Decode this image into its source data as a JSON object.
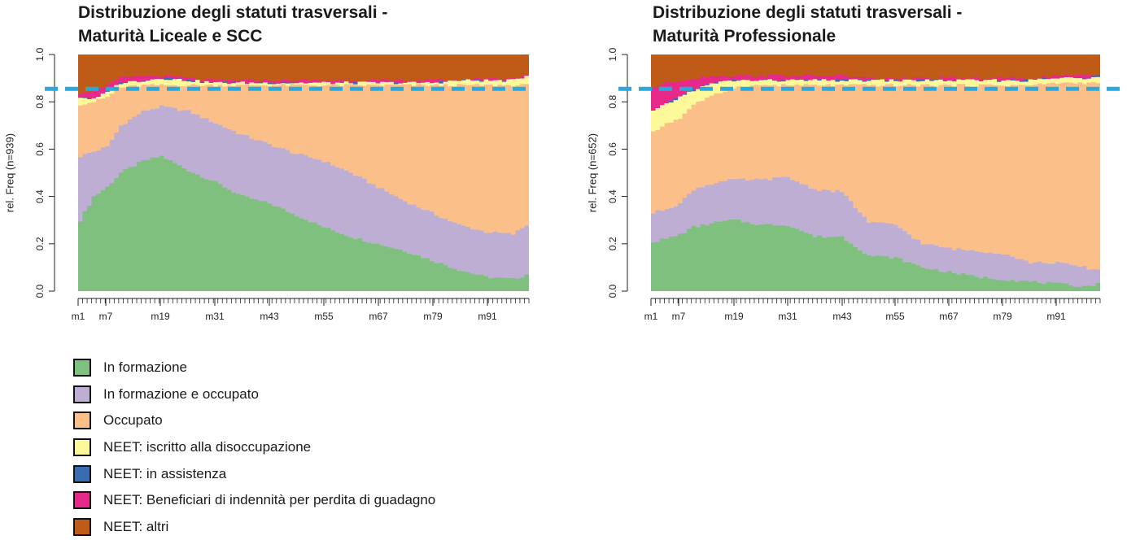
{
  "legend": [
    {
      "label": "In formazione",
      "color": "#7fc07f"
    },
    {
      "label": "In formazione e occupato",
      "color": "#beaed4"
    },
    {
      "label": "Occupato",
      "color": "#fbc08a"
    },
    {
      "label": "NEET: iscritto alla disoccupazione",
      "color": "#fdf89a"
    },
    {
      "label": "NEET: in assistenza",
      "color": "#386cb0"
    },
    {
      "label": "NEET: Beneficiari di indennità per perdita di guadagno",
      "color": "#e7298a"
    },
    {
      "label": "NEET: altri",
      "color": "#bf5b17"
    }
  ],
  "reference_line": {
    "value": 0.855,
    "color": "#2aa7dc",
    "style": "dashed"
  },
  "chart_data": [
    {
      "type": "area",
      "title_line1": "Distribuzione degli statuti trasversali -",
      "title_line2": "Maturità Liceale e SCC",
      "ylabel": "rel. Freq (n=939)",
      "ylim": [
        0,
        1
      ],
      "yticks": [
        "0.0",
        "0.2",
        "0.4",
        "0.6",
        "0.8",
        "1.0"
      ],
      "xticks": [
        "m1",
        "m7",
        "m19",
        "m31",
        "m43",
        "m55",
        "m67",
        "m79",
        "m91"
      ],
      "x_anchor_months": [
        1,
        4,
        7,
        10,
        15,
        19,
        25,
        31,
        37,
        43,
        49,
        55,
        61,
        67,
        73,
        79,
        85,
        91,
        97,
        100
      ],
      "series_cumulative": [
        {
          "name": "In formazione",
          "values": [
            0.3,
            0.4,
            0.44,
            0.5,
            0.55,
            0.57,
            0.51,
            0.46,
            0.4,
            0.37,
            0.32,
            0.27,
            0.23,
            0.2,
            0.17,
            0.13,
            0.09,
            0.06,
            0.05,
            0.07
          ]
        },
        {
          "name": "In formazione e occupato",
          "values": [
            0.57,
            0.59,
            0.61,
            0.7,
            0.76,
            0.78,
            0.76,
            0.71,
            0.66,
            0.62,
            0.58,
            0.55,
            0.5,
            0.44,
            0.38,
            0.33,
            0.28,
            0.25,
            0.24,
            0.28
          ]
        },
        {
          "name": "Occupato",
          "values": [
            0.79,
            0.8,
            0.82,
            0.86,
            0.87,
            0.87,
            0.87,
            0.87,
            0.87,
            0.87,
            0.87,
            0.87,
            0.87,
            0.87,
            0.87,
            0.87,
            0.87,
            0.87,
            0.87,
            0.87
          ]
        },
        {
          "name": "NEET: iscritto alla disoccupazione",
          "values": [
            0.82,
            0.81,
            0.84,
            0.88,
            0.89,
            0.9,
            0.89,
            0.88,
            0.88,
            0.88,
            0.88,
            0.88,
            0.88,
            0.88,
            0.88,
            0.88,
            0.89,
            0.89,
            0.89,
            0.91
          ]
        },
        {
          "name": "NEET: in assistenza",
          "values": [
            0.82,
            0.81,
            0.84,
            0.88,
            0.89,
            0.9,
            0.89,
            0.88,
            0.88,
            0.88,
            0.88,
            0.88,
            0.88,
            0.88,
            0.88,
            0.88,
            0.89,
            0.89,
            0.89,
            0.91
          ]
        },
        {
          "name": "NEET: Beneficiari di indennità per perdita di guadagno",
          "values": [
            0.84,
            0.85,
            0.87,
            0.9,
            0.91,
            0.91,
            0.9,
            0.89,
            0.89,
            0.89,
            0.89,
            0.89,
            0.89,
            0.89,
            0.89,
            0.89,
            0.89,
            0.9,
            0.9,
            0.91
          ]
        },
        {
          "name": "NEET: altri",
          "values": [
            1,
            1,
            1,
            1,
            1,
            1,
            1,
            1,
            1,
            1,
            1,
            1,
            1,
            1,
            1,
            1,
            1,
            1,
            1,
            1
          ]
        }
      ]
    },
    {
      "type": "area",
      "title_line1": "Distribuzione degli statuti trasversali -",
      "title_line2": "Maturità Professionale",
      "ylabel": "rel. Freq (n=652)",
      "ylim": [
        0,
        1
      ],
      "yticks": [
        "0.0",
        "0.2",
        "0.4",
        "0.6",
        "0.8",
        "1.0"
      ],
      "xticks": [
        "m1",
        "m7",
        "m19",
        "m31",
        "m43",
        "m55",
        "m67",
        "m79",
        "m91"
      ],
      "x_anchor_months": [
        1,
        4,
        7,
        10,
        15,
        19,
        25,
        31,
        37,
        43,
        49,
        55,
        61,
        67,
        73,
        79,
        85,
        91,
        97,
        100
      ],
      "series_cumulative": [
        {
          "name": "In formazione",
          "values": [
            0.21,
            0.22,
            0.24,
            0.27,
            0.29,
            0.3,
            0.28,
            0.28,
            0.23,
            0.23,
            0.15,
            0.14,
            0.1,
            0.08,
            0.06,
            0.05,
            0.04,
            0.03,
            0.02,
            0.03
          ]
        },
        {
          "name": "In formazione e occupato",
          "values": [
            0.33,
            0.35,
            0.37,
            0.43,
            0.46,
            0.47,
            0.47,
            0.48,
            0.43,
            0.42,
            0.29,
            0.28,
            0.2,
            0.18,
            0.17,
            0.16,
            0.12,
            0.12,
            0.1,
            0.09
          ]
        },
        {
          "name": "Occupato",
          "values": [
            0.67,
            0.71,
            0.73,
            0.79,
            0.83,
            0.86,
            0.87,
            0.87,
            0.87,
            0.87,
            0.87,
            0.87,
            0.87,
            0.87,
            0.87,
            0.87,
            0.87,
            0.88,
            0.88,
            0.88
          ]
        },
        {
          "name": "NEET: iscritto alla disoccupazione",
          "values": [
            0.76,
            0.79,
            0.82,
            0.85,
            0.88,
            0.89,
            0.89,
            0.89,
            0.89,
            0.89,
            0.89,
            0.89,
            0.89,
            0.89,
            0.89,
            0.89,
            0.89,
            0.9,
            0.9,
            0.91
          ]
        },
        {
          "name": "NEET: in assistenza",
          "values": [
            0.76,
            0.79,
            0.82,
            0.85,
            0.88,
            0.89,
            0.89,
            0.89,
            0.89,
            0.89,
            0.89,
            0.89,
            0.89,
            0.89,
            0.89,
            0.89,
            0.89,
            0.9,
            0.9,
            0.91
          ]
        },
        {
          "name": "NEET: Beneficiari di indennità per perdita di guadagno",
          "values": [
            0.86,
            0.88,
            0.89,
            0.9,
            0.91,
            0.91,
            0.91,
            0.91,
            0.91,
            0.91,
            0.9,
            0.9,
            0.9,
            0.9,
            0.9,
            0.9,
            0.9,
            0.91,
            0.91,
            0.91
          ]
        },
        {
          "name": "NEET: altri",
          "values": [
            1,
            1,
            1,
            1,
            1,
            1,
            1,
            1,
            1,
            1,
            1,
            1,
            1,
            1,
            1,
            1,
            1,
            1,
            1,
            1
          ]
        }
      ]
    }
  ]
}
